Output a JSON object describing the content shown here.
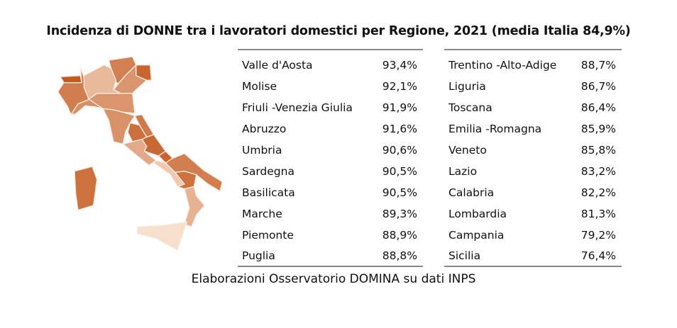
{
  "chart_data": {
    "type": "table",
    "title": "Incidenza di DONNE tra i lavoratori domestici per Regione, 2021 (media Italia 84,9%)",
    "source": "Elaborazioni Osservatorio DOMINA su dati INPS",
    "color_scale": {
      "low": "#f6dfcc",
      "high": "#c45a22"
    },
    "left_table": [
      {
        "region": "Valle d'Aosta",
        "value_label": "93,4%",
        "value": 93.4
      },
      {
        "region": "Molise",
        "value_label": "92,1%",
        "value": 92.1
      },
      {
        "region": "Friuli -Venezia Giulia",
        "value_label": "91,9%",
        "value": 91.9
      },
      {
        "region": "Abruzzo",
        "value_label": "91,6%",
        "value": 91.6
      },
      {
        "region": "Umbria",
        "value_label": "90,6%",
        "value": 90.6
      },
      {
        "region": "Sardegna",
        "value_label": "90,5%",
        "value": 90.5
      },
      {
        "region": "Basilicata",
        "value_label": "90,5%",
        "value": 90.5
      },
      {
        "region": "Marche",
        "value_label": "89,3%",
        "value": 89.3
      },
      {
        "region": "Piemonte",
        "value_label": "88,9%",
        "value": 88.9
      },
      {
        "region": "Puglia",
        "value_label": "88,8%",
        "value": 88.8
      }
    ],
    "right_table": [
      {
        "region": "Trentino -Alto-Adige",
        "value_label": "88,7%",
        "value": 88.7
      },
      {
        "region": "Liguria",
        "value_label": "86,7%",
        "value": 86.7
      },
      {
        "region": "Toscana",
        "value_label": "86,4%",
        "value": 86.4
      },
      {
        "region": "Emilia -Romagna",
        "value_label": "85,9%",
        "value": 85.9
      },
      {
        "region": "Veneto",
        "value_label": "85,8%",
        "value": 85.8
      },
      {
        "region": "Lazio",
        "value_label": "83,2%",
        "value": 83.2
      },
      {
        "region": "Calabria",
        "value_label": "82,2%",
        "value": 82.2
      },
      {
        "region": "Lombardia",
        "value_label": "81,3%",
        "value": 81.3
      },
      {
        "region": "Campania",
        "value_label": "79,2%",
        "value": 79.2
      },
      {
        "region": "Sicilia",
        "value_label": "76,4%",
        "value": 76.4
      }
    ]
  }
}
